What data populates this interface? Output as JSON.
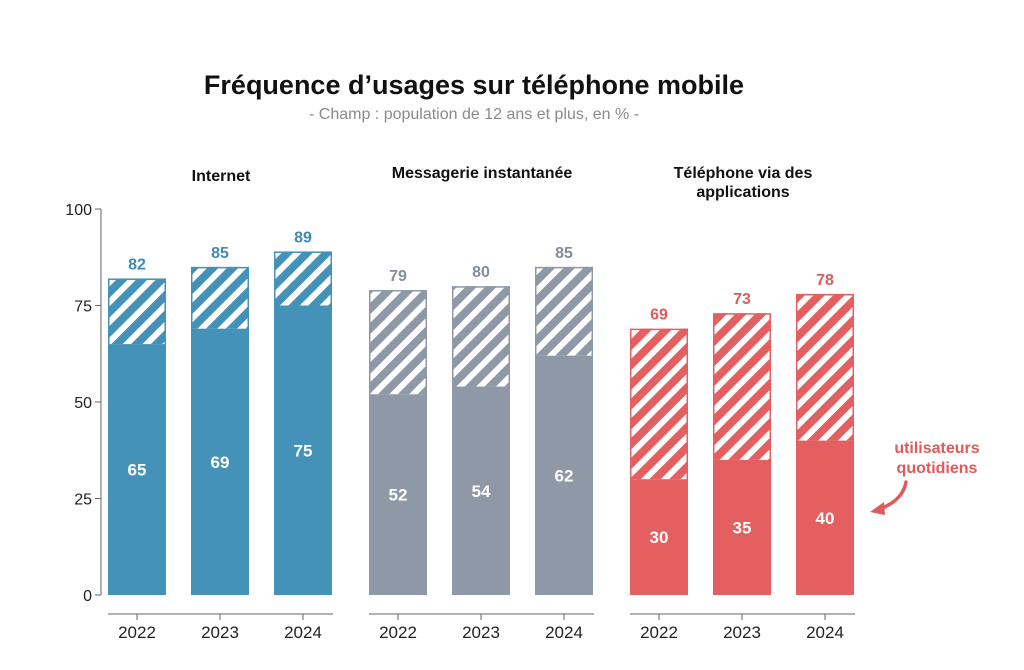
{
  "chart_data": {
    "type": "bar",
    "title": "Fréquence d’usages sur téléphone mobile",
    "subtitle": "- Champ : population de 12 ans et plus, en % -",
    "ylim": [
      0,
      100
    ],
    "yticks": [
      0,
      25,
      50,
      75,
      100
    ],
    "ytick_labels": [
      "0",
      "25",
      "50",
      "75",
      "100"
    ],
    "categories": [
      "2022",
      "2023",
      "2024"
    ],
    "annotation": {
      "lines": [
        "utilisateurs",
        "quotidiens"
      ],
      "color": "#e05a5a"
    },
    "panels": [
      {
        "title_lines": [
          "Internet"
        ],
        "color": "#4592b8",
        "total_label_color": "#3f8ab2",
        "series": [
          {
            "name": "total",
            "values": [
              82,
              85,
              89
            ]
          },
          {
            "name": "utilisateurs quotidiens",
            "values": [
              65,
              69,
              75
            ]
          }
        ]
      },
      {
        "title_lines": [
          "Messagerie instantanée"
        ],
        "color": "#8f98a7",
        "total_label_color": "#848c9b",
        "series": [
          {
            "name": "total",
            "values": [
              79,
              80,
              85
            ]
          },
          {
            "name": "utilisateurs quotidiens",
            "values": [
              52,
              54,
              62
            ]
          }
        ]
      },
      {
        "title_lines": [
          "Téléphone via des",
          "applications"
        ],
        "color": "#e35f60",
        "total_label_color": "#e05a5a",
        "series": [
          {
            "name": "total",
            "values": [
              69,
              73,
              78
            ]
          },
          {
            "name": "utilisateurs quotidiens",
            "values": [
              30,
              35,
              40
            ]
          }
        ]
      }
    ]
  }
}
